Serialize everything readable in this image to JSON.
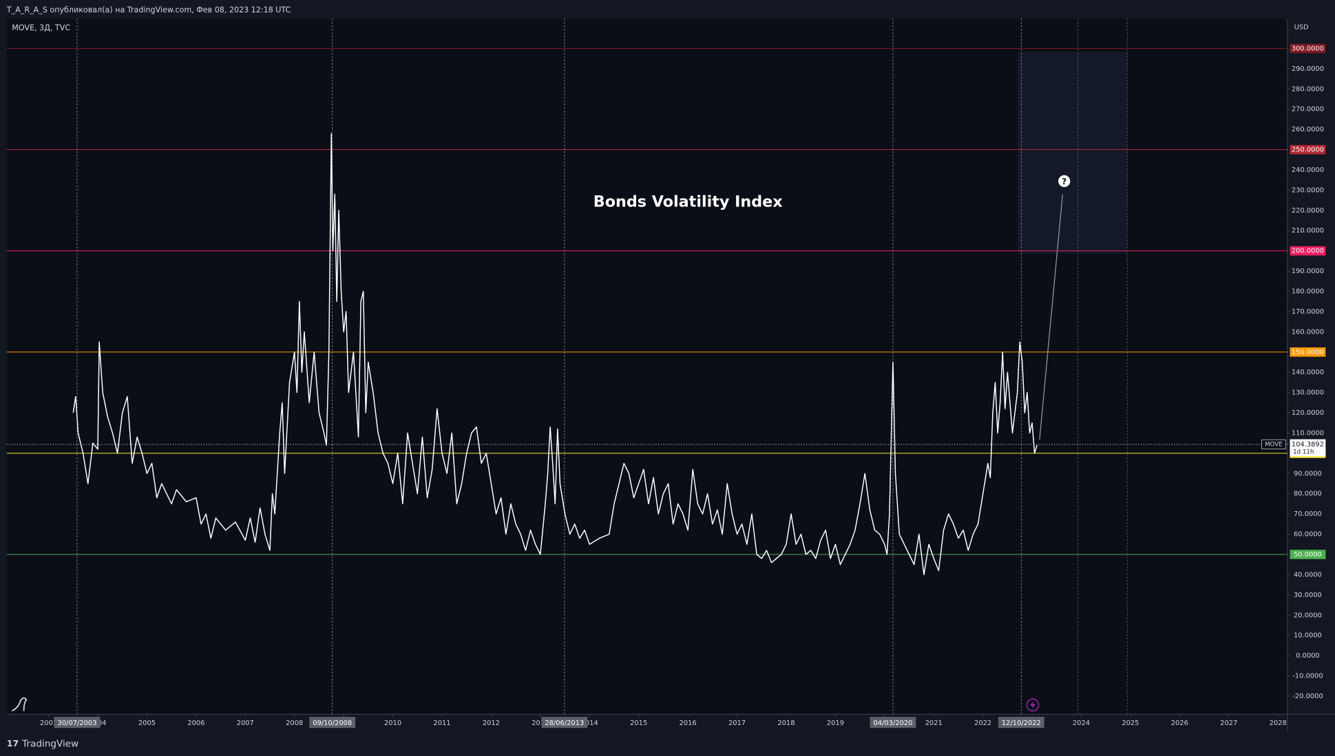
{
  "header": "T_A_R_A_S опубликовал(а) на TradingView.com, Фев 08, 2023 12:18 UTC",
  "footer": "TradingView",
  "chart_data": {
    "type": "line",
    "symbol": "MOVE, 3Д, TVC",
    "currency": "USD",
    "title": "Bonds Volatility Index",
    "x": [
      2003.5,
      2003.55,
      2003.6,
      2003.7,
      2003.8,
      2003.9,
      2004.0,
      2004.03,
      2004.1,
      2004.2,
      2004.3,
      2004.4,
      2004.5,
      2004.6,
      2004.7,
      2004.8,
      2004.9,
      2005.0,
      2005.1,
      2005.2,
      2005.3,
      2005.4,
      2005.5,
      2005.6,
      2005.8,
      2006.0,
      2006.1,
      2006.2,
      2006.3,
      2006.4,
      2006.6,
      2006.8,
      2007.0,
      2007.1,
      2007.2,
      2007.3,
      2007.4,
      2007.5,
      2007.55,
      2007.6,
      2007.7,
      2007.75,
      2007.8,
      2007.9,
      2008.0,
      2008.05,
      2008.1,
      2008.15,
      2008.2,
      2008.3,
      2008.4,
      2008.5,
      2008.6,
      2008.65,
      2008.7,
      2008.75,
      2008.78,
      2008.82,
      2008.86,
      2008.9,
      2008.95,
      2009.0,
      2009.05,
      2009.1,
      2009.2,
      2009.3,
      2009.35,
      2009.4,
      2009.45,
      2009.5,
      2009.6,
      2009.7,
      2009.8,
      2009.9,
      2010.0,
      2010.1,
      2010.2,
      2010.3,
      2010.4,
      2010.5,
      2010.6,
      2010.7,
      2010.8,
      2010.9,
      2011.0,
      2011.1,
      2011.2,
      2011.3,
      2011.4,
      2011.5,
      2011.6,
      2011.7,
      2011.8,
      2011.9,
      2012.0,
      2012.1,
      2012.2,
      2012.3,
      2012.4,
      2012.5,
      2012.6,
      2012.7,
      2012.8,
      2012.9,
      2013.0,
      2013.1,
      2013.15,
      2013.2,
      2013.25,
      2013.3,
      2013.35,
      2013.4,
      2013.5,
      2013.6,
      2013.7,
      2013.8,
      2013.9,
      2014.0,
      2014.2,
      2014.4,
      2014.5,
      2014.6,
      2014.7,
      2014.8,
      2014.9,
      2015.0,
      2015.1,
      2015.2,
      2015.3,
      2015.4,
      2015.5,
      2015.6,
      2015.7,
      2015.8,
      2015.9,
      2016.0,
      2016.1,
      2016.2,
      2016.3,
      2016.4,
      2016.5,
      2016.6,
      2016.7,
      2016.8,
      2016.9,
      2017.0,
      2017.1,
      2017.2,
      2017.3,
      2017.4,
      2017.5,
      2017.6,
      2017.7,
      2017.8,
      2017.9,
      2018.0,
      2018.1,
      2018.2,
      2018.3,
      2018.4,
      2018.5,
      2018.6,
      2018.7,
      2018.8,
      2018.9,
      2019.0,
      2019.1,
      2019.2,
      2019.3,
      2019.4,
      2019.5,
      2019.6,
      2019.7,
      2019.8,
      2019.9,
      2020.0,
      2020.05,
      2020.1,
      2020.17,
      2020.22,
      2020.3,
      2020.4,
      2020.5,
      2020.6,
      2020.7,
      2020.8,
      2020.9,
      2021.0,
      2021.1,
      2021.2,
      2021.3,
      2021.4,
      2021.5,
      2021.6,
      2021.7,
      2021.8,
      2021.9,
      2022.0,
      2022.1,
      2022.15,
      2022.2,
      2022.25,
      2022.3,
      2022.35,
      2022.4,
      2022.45,
      2022.5,
      2022.6,
      2022.7,
      2022.75,
      2022.8,
      2022.85,
      2022.9,
      2022.95,
      2023.0,
      2023.05,
      2023.1
    ],
    "series": [
      {
        "name": "MOVE",
        "color": "#ffffff",
        "values": [
          120,
          128,
          110,
          100,
          85,
          105,
          102,
          155,
          130,
          118,
          110,
          100,
          120,
          128,
          95,
          108,
          100,
          90,
          95,
          78,
          85,
          80,
          75,
          82,
          76,
          78,
          65,
          70,
          58,
          68,
          62,
          66,
          57,
          68,
          56,
          73,
          60,
          52,
          80,
          70,
          110,
          125,
          90,
          135,
          150,
          130,
          175,
          140,
          160,
          125,
          150,
          120,
          110,
          104,
          150,
          258,
          200,
          228,
          175,
          220,
          180,
          160,
          170,
          130,
          150,
          108,
          175,
          180,
          120,
          145,
          130,
          110,
          100,
          95,
          85,
          100,
          75,
          110,
          95,
          80,
          108,
          78,
          92,
          122,
          100,
          90,
          110,
          75,
          85,
          100,
          110,
          113,
          95,
          100,
          85,
          70,
          78,
          60,
          75,
          65,
          60,
          52,
          62,
          55,
          50,
          75,
          90,
          113,
          95,
          75,
          112,
          85,
          70,
          60,
          65,
          58,
          62,
          55,
          58,
          60,
          75,
          85,
          95,
          90,
          78,
          85,
          92,
          75,
          88,
          70,
          80,
          85,
          65,
          75,
          70,
          62,
          92,
          75,
          70,
          80,
          65,
          72,
          60,
          85,
          70,
          60,
          65,
          55,
          70,
          50,
          48,
          52,
          46,
          48,
          50,
          55,
          70,
          55,
          60,
          50,
          52,
          48,
          57,
          62,
          48,
          55,
          45,
          50,
          55,
          62,
          75,
          90,
          72,
          62,
          60,
          55,
          50,
          70,
          145,
          90,
          60,
          55,
          50,
          45,
          60,
          40,
          55,
          48,
          42,
          62,
          70,
          65,
          58,
          62,
          52,
          60,
          65,
          80,
          95,
          88,
          120,
          135,
          110,
          125,
          150,
          122,
          140,
          110,
          130,
          155,
          145,
          120,
          130,
          110,
          115,
          100,
          104
        ]
      }
    ],
    "last_price": {
      "value": 104.3892,
      "label": "104.3892",
      "countdown": "1d 11h"
    },
    "xlim": [
      2002.15,
      2028.19
    ],
    "xticks": [
      2003,
      2004,
      2005,
      2006,
      2007,
      2008,
      2009,
      2010,
      2011,
      2012,
      2013,
      2014,
      2015,
      2016,
      2017,
      2018,
      2019,
      2020,
      2021,
      2022,
      2023,
      2024,
      2025,
      2026,
      2027,
      2028
    ],
    "ylim": [
      -29,
      314.7
    ],
    "yticks": [
      {
        "value": -20,
        "label": "-20.0000"
      },
      {
        "value": -10,
        "label": "-10.0000"
      },
      {
        "value": 0,
        "label": "0.0000"
      },
      {
        "value": 10,
        "label": "10.0000"
      },
      {
        "value": 20,
        "label": "20.0000"
      },
      {
        "value": 30,
        "label": "30.0000"
      },
      {
        "value": 40,
        "label": "40.0000"
      },
      {
        "value": 60,
        "label": "60.0000"
      },
      {
        "value": 70,
        "label": "70.0000"
      },
      {
        "value": 80,
        "label": "80.0000"
      },
      {
        "value": 90,
        "label": "90.0000"
      },
      {
        "value": 110,
        "label": "110.0000"
      },
      {
        "value": 120,
        "label": "120.0000"
      },
      {
        "value": 130,
        "label": "130.0000"
      },
      {
        "value": 140,
        "label": "140.0000"
      },
      {
        "value": 160,
        "label": "160.0000"
      },
      {
        "value": 170,
        "label": "170.0000"
      },
      {
        "value": 180,
        "label": "180.0000"
      },
      {
        "value": 190,
        "label": "190.0000"
      },
      {
        "value": 210,
        "label": "210.0000"
      },
      {
        "value": 220,
        "label": "220.0000"
      },
      {
        "value": 230,
        "label": "230.0000"
      },
      {
        "value": 240,
        "label": "240.0000"
      },
      {
        "value": 260,
        "label": "260.0000"
      },
      {
        "value": 270,
        "label": "270.0000"
      },
      {
        "value": 280,
        "label": "280.0000"
      },
      {
        "value": 290,
        "label": "290.0000"
      }
    ],
    "hlines": [
      {
        "value": 300,
        "label": "300.0000",
        "color": "#801922"
      },
      {
        "value": 250,
        "label": "250.0000",
        "color": "#b22833"
      },
      {
        "value": 200,
        "label": "200.0000",
        "color": "#e91e63"
      },
      {
        "value": 150,
        "label": "150.0000",
        "color": "#ff9800"
      },
      {
        "value": 100,
        "label": "100.0000",
        "color": "#ffeb3b"
      },
      {
        "value": 50,
        "label": "50.0000",
        "color": "#4caf50"
      }
    ],
    "vlines": [
      {
        "value": 2003.58,
        "label": "30/07/2003"
      },
      {
        "value": 2008.77,
        "label": "09/10/2008"
      },
      {
        "value": 2013.49,
        "label": "28/06/2013"
      },
      {
        "value": 2020.17,
        "label": "04/03/2020"
      },
      {
        "value": 2022.78,
        "label": "12/10/2022"
      }
    ]
  }
}
